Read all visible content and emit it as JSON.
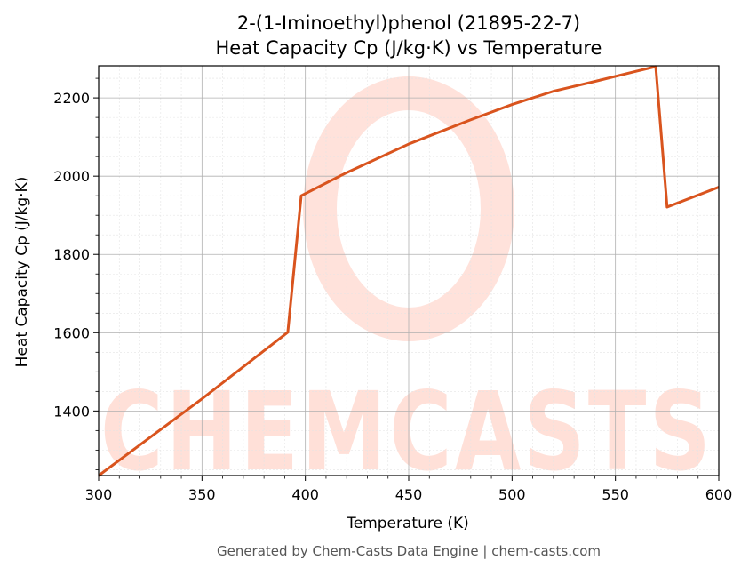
{
  "colors": {
    "series": "#d9541e",
    "grid_major": "#b0b0b0",
    "grid_minor": "#e4e4e4",
    "watermark": "#ffd6cc",
    "footer": "#555555"
  },
  "watermark_text": "CHEMCASTS",
  "footer": "Generated by Chem-Casts Data Engine | chem-casts.com",
  "chart_data": {
    "type": "line",
    "title_lines": [
      "2-(1-Iminoethyl)phenol (21895-22-7)",
      "Heat Capacity Cp (J/kg·K) vs Temperature"
    ],
    "xlabel": "Temperature (K)",
    "ylabel": "Heat Capacity Cp (J/kg·K)",
    "xlim": [
      300,
      600
    ],
    "ylim": [
      1235,
      2282
    ],
    "xticks": [
      300,
      350,
      400,
      450,
      500,
      550,
      600
    ],
    "yticks": [
      1400,
      1600,
      1800,
      2000,
      2200
    ],
    "x_minor_step": 10,
    "y_minor_step": 50,
    "grid": true,
    "series": [
      {
        "points": [
          [
            300,
            1235
          ],
          [
            350,
            1431
          ],
          [
            391.5,
            1601
          ],
          [
            398,
            1950
          ],
          [
            420,
            2009
          ],
          [
            450,
            2082
          ],
          [
            480,
            2144
          ],
          [
            500,
            2183
          ],
          [
            520,
            2217
          ],
          [
            540,
            2242
          ],
          [
            560,
            2268
          ],
          [
            569.5,
            2280
          ],
          [
            575,
            1921
          ],
          [
            600,
            1972
          ]
        ]
      }
    ]
  }
}
